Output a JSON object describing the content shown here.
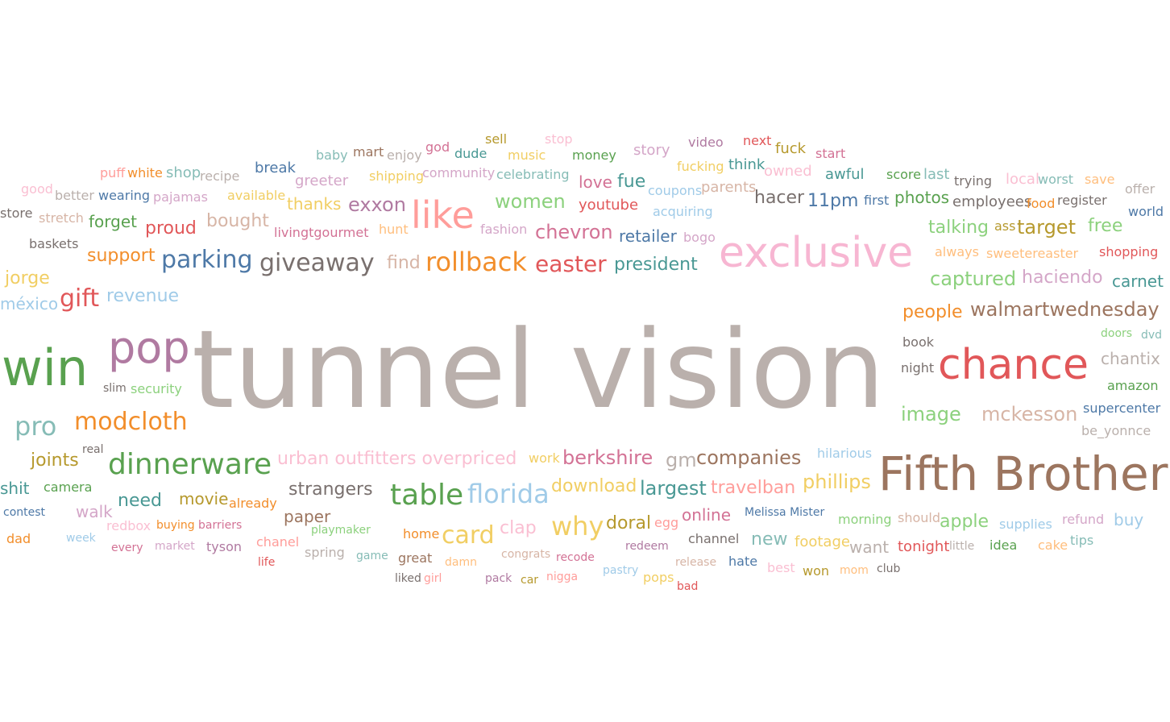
{
  "chart_data": {
    "type": "wordcloud",
    "title": "",
    "words": [
      {
        "text": "tunnel vision",
        "size": 134,
        "color": "#bab0ac"
      },
      {
        "text": "Fifth Brother",
        "size": 58,
        "color": "#9c755f"
      },
      {
        "text": "exclusive",
        "size": 52,
        "color": "#f7b6d2"
      },
      {
        "text": "chance",
        "size": 52,
        "color": "#e15759"
      },
      {
        "text": "win",
        "size": 62,
        "color": "#59a14f"
      },
      {
        "text": "pop",
        "size": 54,
        "color": "#b07aa1"
      },
      {
        "text": "like",
        "size": 46,
        "color": "#ff9d9a"
      },
      {
        "text": "table",
        "size": 36,
        "color": "#59a14f"
      },
      {
        "text": "florida",
        "size": 32,
        "color": "#a0cbe8"
      },
      {
        "text": "dinnerware",
        "size": 36,
        "color": "#59a14f"
      },
      {
        "text": "giveaway",
        "size": 30,
        "color": "#79706e"
      },
      {
        "text": "rollback",
        "size": 32,
        "color": "#f28e2b"
      },
      {
        "text": "parking",
        "size": 30,
        "color": "#4e79a7"
      },
      {
        "text": "modcloth",
        "size": 30,
        "color": "#f28e2b"
      },
      {
        "text": "pro",
        "size": 32,
        "color": "#86bcb6"
      },
      {
        "text": "why",
        "size": 32,
        "color": "#f1ce63"
      },
      {
        "text": "card",
        "size": 30,
        "color": "#f1ce63"
      },
      {
        "text": "easter",
        "size": 28,
        "color": "#e15759"
      },
      {
        "text": "gift",
        "size": 30,
        "color": "#e15759"
      },
      {
        "text": "walmartwednesday",
        "size": 24,
        "color": "#9c755f"
      },
      {
        "text": "women",
        "size": 24,
        "color": "#8cd17d"
      },
      {
        "text": "chevron",
        "size": 24,
        "color": "#d37295"
      },
      {
        "text": "exxon",
        "size": 24,
        "color": "#b07aa1"
      },
      {
        "text": "largest",
        "size": 24,
        "color": "#499894"
      },
      {
        "text": "companies",
        "size": 24,
        "color": "#9c755f"
      },
      {
        "text": "berkshire",
        "size": 24,
        "color": "#d37295"
      },
      {
        "text": "president",
        "size": 22,
        "color": "#499894"
      },
      {
        "text": "captured",
        "size": 24,
        "color": "#8cd17d"
      },
      {
        "text": "haciendo",
        "size": 22,
        "color": "#d4a6c8"
      },
      {
        "text": "mckesson",
        "size": 24,
        "color": "#d7b5a6"
      },
      {
        "text": "image",
        "size": 24,
        "color": "#8cd17d"
      },
      {
        "text": "phillips",
        "size": 24,
        "color": "#f1ce63"
      },
      {
        "text": "travelban",
        "size": 22,
        "color": "#ff9d9a"
      },
      {
        "text": "download",
        "size": 22,
        "color": "#f1ce63"
      },
      {
        "text": "strangers",
        "size": 22,
        "color": "#79706e"
      },
      {
        "text": "urban outfitters overpriced",
        "size": 22,
        "color": "#fabfd2"
      },
      {
        "text": "gm",
        "size": 24,
        "color": "#bab0ac"
      },
      {
        "text": "talking",
        "size": 22,
        "color": "#8cd17d"
      },
      {
        "text": "target",
        "size": 24,
        "color": "#b6992d"
      },
      {
        "text": "free",
        "size": 22,
        "color": "#8cd17d"
      },
      {
        "text": "people",
        "size": 22,
        "color": "#f28e2b"
      },
      {
        "text": "bought",
        "size": 22,
        "color": "#d7b5a6"
      },
      {
        "text": "revenue",
        "size": 22,
        "color": "#a0cbe8"
      },
      {
        "text": "support",
        "size": 22,
        "color": "#f28e2b"
      },
      {
        "text": "proud",
        "size": 22,
        "color": "#e15759"
      },
      {
        "text": "thanks",
        "size": 20,
        "color": "#f1ce63"
      },
      {
        "text": "forget",
        "size": 20,
        "color": "#59a14f"
      },
      {
        "text": "jorge",
        "size": 22,
        "color": "#f1ce63"
      },
      {
        "text": "méxico",
        "size": 20,
        "color": "#a0cbe8"
      },
      {
        "text": "joints",
        "size": 22,
        "color": "#b6992d"
      },
      {
        "text": "need",
        "size": 22,
        "color": "#499894"
      },
      {
        "text": "movie",
        "size": 20,
        "color": "#b6992d"
      },
      {
        "text": "walk",
        "size": 20,
        "color": "#d4a6c8"
      },
      {
        "text": "paper",
        "size": 20,
        "color": "#9c755f"
      },
      {
        "text": "retailer",
        "size": 20,
        "color": "#4e79a7"
      },
      {
        "text": "hacer",
        "size": 22,
        "color": "#79706e"
      },
      {
        "text": "11pm",
        "size": 22,
        "color": "#4e79a7"
      },
      {
        "text": "photos",
        "size": 20,
        "color": "#59a14f"
      },
      {
        "text": "love",
        "size": 20,
        "color": "#d37295"
      },
      {
        "text": "fue",
        "size": 22,
        "color": "#499894"
      },
      {
        "text": "youtube",
        "size": 18,
        "color": "#e15759"
      },
      {
        "text": "find",
        "size": 22,
        "color": "#d7b5a6"
      },
      {
        "text": "carnet",
        "size": 20,
        "color": "#499894"
      },
      {
        "text": "chantix",
        "size": 20,
        "color": "#bab0ac"
      },
      {
        "text": "shit",
        "size": 20,
        "color": "#499894"
      },
      {
        "text": "clap",
        "size": 22,
        "color": "#fabfd2"
      },
      {
        "text": "doral",
        "size": 22,
        "color": "#b6992d"
      },
      {
        "text": "online",
        "size": 20,
        "color": "#d37295"
      },
      {
        "text": "new",
        "size": 22,
        "color": "#86bcb6"
      },
      {
        "text": "apple",
        "size": 22,
        "color": "#8cd17d"
      },
      {
        "text": "buy",
        "size": 20,
        "color": "#a0cbe8"
      },
      {
        "text": "want",
        "size": 20,
        "color": "#bab0ac"
      },
      {
        "text": "tonight",
        "size": 18,
        "color": "#e15759"
      },
      {
        "text": "footage",
        "size": 18,
        "color": "#f1ce63"
      },
      {
        "text": "awful",
        "size": 18,
        "color": "#499894"
      },
      {
        "text": "employees",
        "size": 18,
        "color": "#79706e"
      },
      {
        "text": "music",
        "size": 16,
        "color": "#f1ce63"
      },
      {
        "text": "money",
        "size": 16,
        "color": "#59a14f"
      },
      {
        "text": "story",
        "size": 18,
        "color": "#d4a6c8"
      },
      {
        "text": "video",
        "size": 16,
        "color": "#b07aa1"
      },
      {
        "text": "next",
        "size": 16,
        "color": "#e15759"
      },
      {
        "text": "fuck",
        "size": 18,
        "color": "#b6992d"
      },
      {
        "text": "start",
        "size": 16,
        "color": "#d37295"
      },
      {
        "text": "sell",
        "size": 16,
        "color": "#b6992d"
      },
      {
        "text": "stop",
        "size": 16,
        "color": "#fabfd2"
      },
      {
        "text": "god",
        "size": 16,
        "color": "#d37295"
      },
      {
        "text": "dude",
        "size": 16,
        "color": "#499894"
      },
      {
        "text": "baby",
        "size": 16,
        "color": "#86bcb6"
      },
      {
        "text": "mart",
        "size": 16,
        "color": "#9c755f"
      },
      {
        "text": "enjoy",
        "size": 16,
        "color": "#bab0ac"
      },
      {
        "text": "break",
        "size": 18,
        "color": "#4e79a7"
      },
      {
        "text": "greeter",
        "size": 18,
        "color": "#d4a6c8"
      },
      {
        "text": "shipping",
        "size": 16,
        "color": "#f1ce63"
      },
      {
        "text": "community",
        "size": 16,
        "color": "#d4a6c8"
      },
      {
        "text": "celebrating",
        "size": 16,
        "color": "#86bcb6"
      },
      {
        "text": "fucking",
        "size": 16,
        "color": "#f1ce63"
      },
      {
        "text": "think",
        "size": 18,
        "color": "#499894"
      },
      {
        "text": "owned",
        "size": 18,
        "color": "#fabfd2"
      },
      {
        "text": "score",
        "size": 16,
        "color": "#59a14f"
      },
      {
        "text": "last",
        "size": 18,
        "color": "#86bcb6"
      },
      {
        "text": "trying",
        "size": 16,
        "color": "#79706e"
      },
      {
        "text": "local",
        "size": 18,
        "color": "#fabfd2"
      },
      {
        "text": "worst",
        "size": 16,
        "color": "#86bcb6"
      },
      {
        "text": "save",
        "size": 16,
        "color": "#ffbe7d"
      },
      {
        "text": "offer",
        "size": 16,
        "color": "#bab0ac"
      },
      {
        "text": "puff",
        "size": 16,
        "color": "#ff9d9a"
      },
      {
        "text": "white",
        "size": 16,
        "color": "#f28e2b"
      },
      {
        "text": "shop",
        "size": 18,
        "color": "#86bcb6"
      },
      {
        "text": "recipe",
        "size": 16,
        "color": "#bab0ac"
      },
      {
        "text": "good",
        "size": 16,
        "color": "#fabfd2"
      },
      {
        "text": "better",
        "size": 16,
        "color": "#bab0ac"
      },
      {
        "text": "wearing",
        "size": 16,
        "color": "#4e79a7"
      },
      {
        "text": "pajamas",
        "size": 16,
        "color": "#d4a6c8"
      },
      {
        "text": "available",
        "size": 16,
        "color": "#f1ce63"
      },
      {
        "text": "coupons",
        "size": 16,
        "color": "#a0cbe8"
      },
      {
        "text": "parents",
        "size": 18,
        "color": "#d7b5a6"
      },
      {
        "text": "first",
        "size": 16,
        "color": "#4e79a7"
      },
      {
        "text": "food",
        "size": 16,
        "color": "#f28e2b"
      },
      {
        "text": "register",
        "size": 16,
        "color": "#79706e"
      },
      {
        "text": "world",
        "size": 16,
        "color": "#4e79a7"
      },
      {
        "text": "store",
        "size": 16,
        "color": "#79706e"
      },
      {
        "text": "stretch",
        "size": 16,
        "color": "#d7b5a6"
      },
      {
        "text": "livingtgourmet",
        "size": 16,
        "color": "#d37295"
      },
      {
        "text": "hunt",
        "size": 16,
        "color": "#ffbe7d"
      },
      {
        "text": "fashion",
        "size": 16,
        "color": "#d4a6c8"
      },
      {
        "text": "acquiring",
        "size": 16,
        "color": "#a0cbe8"
      },
      {
        "text": "bogo",
        "size": 16,
        "color": "#d4a6c8"
      },
      {
        "text": "ass",
        "size": 16,
        "color": "#b6992d"
      },
      {
        "text": "always",
        "size": 16,
        "color": "#ffbe7d"
      },
      {
        "text": "sweetereaster",
        "size": 16,
        "color": "#ffbe7d"
      },
      {
        "text": "shopping",
        "size": 16,
        "color": "#e15759"
      },
      {
        "text": "baskets",
        "size": 16,
        "color": "#79706e"
      },
      {
        "text": "book",
        "size": 16,
        "color": "#79706e"
      },
      {
        "text": "doors",
        "size": 14,
        "color": "#8cd17d"
      },
      {
        "text": "dvd",
        "size": 14,
        "color": "#86bcb6"
      },
      {
        "text": "night",
        "size": 16,
        "color": "#79706e"
      },
      {
        "text": "amazon",
        "size": 16,
        "color": "#59a14f"
      },
      {
        "text": "supercenter",
        "size": 16,
        "color": "#4e79a7"
      },
      {
        "text": "be_yonnce",
        "size": 16,
        "color": "#bab0ac"
      },
      {
        "text": "slim",
        "size": 14,
        "color": "#79706e"
      },
      {
        "text": "security",
        "size": 16,
        "color": "#8cd17d"
      },
      {
        "text": "real",
        "size": 14,
        "color": "#79706e"
      },
      {
        "text": "work",
        "size": 16,
        "color": "#f1ce63"
      },
      {
        "text": "hilarious",
        "size": 16,
        "color": "#a0cbe8"
      },
      {
        "text": "camera",
        "size": 16,
        "color": "#59a14f"
      },
      {
        "text": "already",
        "size": 16,
        "color": "#f28e2b"
      },
      {
        "text": "contest",
        "size": 14,
        "color": "#4e79a7"
      },
      {
        "text": "Melissa Mister",
        "size": 14,
        "color": "#4e79a7"
      },
      {
        "text": "morning",
        "size": 16,
        "color": "#8cd17d"
      },
      {
        "text": "should",
        "size": 16,
        "color": "#d7b5a6"
      },
      {
        "text": "supplies",
        "size": 16,
        "color": "#a0cbe8"
      },
      {
        "text": "refund",
        "size": 16,
        "color": "#d4a6c8"
      },
      {
        "text": "dad",
        "size": 16,
        "color": "#f28e2b"
      },
      {
        "text": "week",
        "size": 14,
        "color": "#a0cbe8"
      },
      {
        "text": "redbox",
        "size": 16,
        "color": "#fabfd2"
      },
      {
        "text": "buying",
        "size": 14,
        "color": "#f28e2b"
      },
      {
        "text": "barriers",
        "size": 14,
        "color": "#d37295"
      },
      {
        "text": "playmaker",
        "size": 14,
        "color": "#8cd17d"
      },
      {
        "text": "home",
        "size": 16,
        "color": "#f28e2b"
      },
      {
        "text": "egg",
        "size": 16,
        "color": "#ff9d9a"
      },
      {
        "text": "channel",
        "size": 16,
        "color": "#79706e"
      },
      {
        "text": "redeem",
        "size": 14,
        "color": "#b07aa1"
      },
      {
        "text": "chanel",
        "size": 16,
        "color": "#ff9d9a"
      },
      {
        "text": "every",
        "size": 14,
        "color": "#d37295"
      },
      {
        "text": "market",
        "size": 14,
        "color": "#d4a6c8"
      },
      {
        "text": "tyson",
        "size": 16,
        "color": "#b07aa1"
      },
      {
        "text": "spring",
        "size": 16,
        "color": "#bab0ac"
      },
      {
        "text": "game",
        "size": 14,
        "color": "#86bcb6"
      },
      {
        "text": "great",
        "size": 16,
        "color": "#9c755f"
      },
      {
        "text": "damn",
        "size": 14,
        "color": "#ffbe7d"
      },
      {
        "text": "congrats",
        "size": 14,
        "color": "#d7b5a6"
      },
      {
        "text": "recode",
        "size": 14,
        "color": "#d37295"
      },
      {
        "text": "little",
        "size": 14,
        "color": "#bab0ac"
      },
      {
        "text": "idea",
        "size": 16,
        "color": "#59a14f"
      },
      {
        "text": "cake",
        "size": 16,
        "color": "#ffbe7d"
      },
      {
        "text": "tips",
        "size": 16,
        "color": "#86bcb6"
      },
      {
        "text": "life",
        "size": 14,
        "color": "#e15759"
      },
      {
        "text": "liked",
        "size": 14,
        "color": "#79706e"
      },
      {
        "text": "girl",
        "size": 14,
        "color": "#ff9d9a"
      },
      {
        "text": "pack",
        "size": 14,
        "color": "#b07aa1"
      },
      {
        "text": "car",
        "size": 14,
        "color": "#b6992d"
      },
      {
        "text": "nigga",
        "size": 14,
        "color": "#ff9d9a"
      },
      {
        "text": "pastry",
        "size": 14,
        "color": "#a0cbe8"
      },
      {
        "text": "pops",
        "size": 16,
        "color": "#f1ce63"
      },
      {
        "text": "release",
        "size": 14,
        "color": "#d7b5a6"
      },
      {
        "text": "hate",
        "size": 16,
        "color": "#4e79a7"
      },
      {
        "text": "best",
        "size": 16,
        "color": "#fabfd2"
      },
      {
        "text": "won",
        "size": 16,
        "color": "#b6992d"
      },
      {
        "text": "mom",
        "size": 14,
        "color": "#ffbe7d"
      },
      {
        "text": "club",
        "size": 14,
        "color": "#79706e"
      },
      {
        "text": "bad",
        "size": 14,
        "color": "#e15759"
      }
    ]
  }
}
